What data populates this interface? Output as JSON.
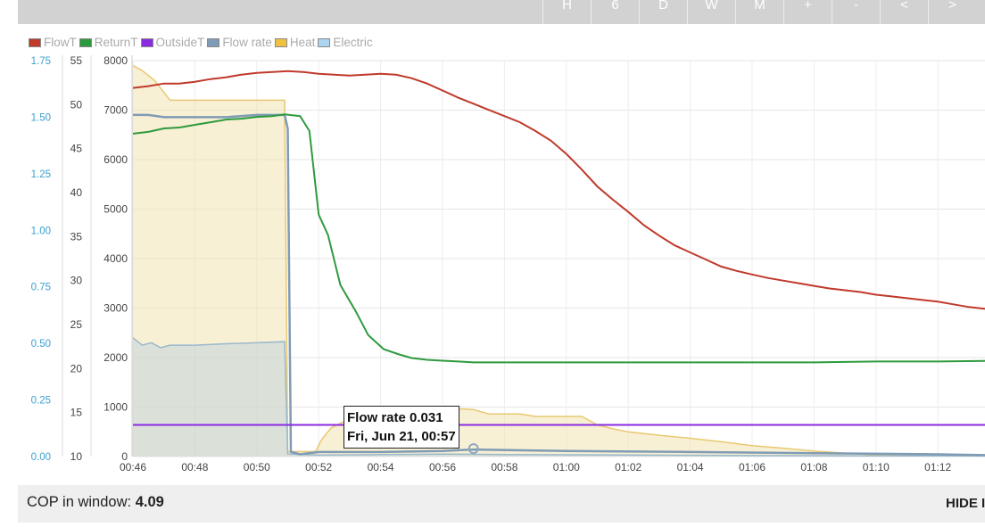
{
  "toolbar": {
    "buttons": [
      "H",
      "6",
      "D",
      "W",
      "M",
      "+",
      "-",
      "<",
      ">"
    ]
  },
  "colors": {
    "FlowT": "#c0392b",
    "ReturnT": "#2e9a3e",
    "OutsideT": "#8a2be2",
    "Flow rate": "#7f9bb5",
    "Heat": "#f0c040",
    "Electric": "#aad4f0"
  },
  "tooltip": {
    "line1": "Flow rate 0.031",
    "line2": "Fri, Jun 21, 00:57"
  },
  "cop": {
    "label": "COP in window:",
    "value": "4.09"
  },
  "hide_button": "HIDE I",
  "chart_data": {
    "type": "line",
    "legend": [
      "FlowT",
      "ReturnT",
      "OutsideT",
      "Flow rate",
      "Heat",
      "Electric"
    ],
    "legend_position": "top-left",
    "grid": true,
    "x_ticks": [
      "00:46",
      "00:48",
      "00:50",
      "00:52",
      "00:54",
      "00:56",
      "00:58",
      "01:00",
      "01:02",
      "01:04",
      "01:06",
      "01:08",
      "01:10",
      "01:12"
    ],
    "x_range": [
      "00:46",
      "01:14"
    ],
    "axes": {
      "flow_rate": {
        "range": [
          0,
          1.75
        ],
        "ticks": [
          "0.00",
          "0.25",
          "0.50",
          "0.75",
          "1.00",
          "1.25",
          "1.50",
          "1.75"
        ]
      },
      "temperature": {
        "range": [
          10,
          55
        ],
        "ticks": [
          "10",
          "15",
          "20",
          "25",
          "30",
          "35",
          "40",
          "45",
          "50",
          "55"
        ]
      },
      "power": {
        "range": [
          0,
          8000
        ],
        "ticks": [
          "0",
          "1000",
          "2000",
          "3000",
          "4000",
          "5000",
          "6000",
          "7000",
          "8000"
        ]
      }
    },
    "series": [
      {
        "name": "FlowT",
        "axis": "temperature",
        "points": [
          [
            0,
            51.9
          ],
          [
            0.5,
            52.1
          ],
          [
            1,
            52.4
          ],
          [
            1.5,
            52.4
          ],
          [
            2,
            52.6
          ],
          [
            2.5,
            52.9
          ],
          [
            3,
            53.1
          ],
          [
            3.5,
            53.4
          ],
          [
            4,
            53.6
          ],
          [
            4.5,
            53.7
          ],
          [
            5,
            53.8
          ],
          [
            5.5,
            53.7
          ],
          [
            6,
            53.5
          ],
          [
            6.5,
            53.4
          ],
          [
            7,
            53.3
          ],
          [
            7.5,
            53.4
          ],
          [
            8,
            53.5
          ],
          [
            8.5,
            53.4
          ],
          [
            9,
            53.0
          ],
          [
            9.5,
            52.4
          ],
          [
            10,
            51.6
          ],
          [
            10.5,
            50.8
          ],
          [
            11,
            50.1
          ],
          [
            11.5,
            49.4
          ],
          [
            12,
            48.7
          ],
          [
            12.5,
            48.0
          ],
          [
            13,
            47.0
          ],
          [
            13.5,
            45.9
          ],
          [
            14,
            44.4
          ],
          [
            14.5,
            42.6
          ],
          [
            15,
            40.7
          ],
          [
            15.5,
            39.2
          ],
          [
            16,
            37.8
          ],
          [
            16.5,
            36.3
          ],
          [
            17,
            35.1
          ],
          [
            17.5,
            34.0
          ],
          [
            18,
            33.2
          ],
          [
            18.5,
            32.4
          ],
          [
            19,
            31.6
          ],
          [
            19.5,
            31.1
          ],
          [
            20,
            30.7
          ],
          [
            20.5,
            30.3
          ],
          [
            21,
            30.0
          ],
          [
            21.5,
            29.7
          ],
          [
            22,
            29.4
          ],
          [
            22.5,
            29.1
          ],
          [
            23,
            28.9
          ],
          [
            23.5,
            28.7
          ],
          [
            24,
            28.4
          ],
          [
            24.5,
            28.2
          ],
          [
            25,
            28.0
          ],
          [
            25.5,
            27.8
          ],
          [
            26,
            27.6
          ],
          [
            26.5,
            27.3
          ],
          [
            27,
            27.0
          ],
          [
            27.5,
            26.8
          ],
          [
            28,
            26.6
          ]
        ]
      },
      {
        "name": "ReturnT",
        "axis": "temperature",
        "points": [
          [
            0,
            46.7
          ],
          [
            0.5,
            46.9
          ],
          [
            1,
            47.3
          ],
          [
            1.5,
            47.4
          ],
          [
            2,
            47.7
          ],
          [
            2.5,
            48.0
          ],
          [
            3,
            48.3
          ],
          [
            3.5,
            48.4
          ],
          [
            4,
            48.6
          ],
          [
            4.5,
            48.7
          ],
          [
            4.9,
            48.9
          ],
          [
            5.4,
            48.7
          ],
          [
            5.7,
            47.0
          ],
          [
            6.0,
            37.5
          ],
          [
            6.3,
            35.2
          ],
          [
            6.7,
            29.5
          ],
          [
            7.2,
            26.5
          ],
          [
            7.6,
            23.8
          ],
          [
            8.1,
            22.2
          ],
          [
            8.6,
            21.6
          ],
          [
            9.0,
            21.2
          ],
          [
            9.5,
            21.0
          ],
          [
            10,
            20.9
          ],
          [
            10.5,
            20.8
          ],
          [
            11,
            20.7
          ],
          [
            12,
            20.7
          ],
          [
            14,
            20.7
          ],
          [
            16,
            20.7
          ],
          [
            18,
            20.7
          ],
          [
            20,
            20.7
          ],
          [
            22,
            20.7
          ],
          [
            24,
            20.8
          ],
          [
            26,
            20.8
          ],
          [
            28,
            20.9
          ]
        ]
      },
      {
        "name": "OutsideT",
        "axis": "temperature",
        "points": [
          [
            0,
            13.6
          ],
          [
            28,
            13.6
          ]
        ]
      },
      {
        "name": "Flow rate",
        "axis": "flow_rate",
        "points": [
          [
            0,
            1.51
          ],
          [
            0.5,
            1.51
          ],
          [
            1,
            1.5
          ],
          [
            2,
            1.5
          ],
          [
            3,
            1.5
          ],
          [
            4,
            1.51
          ],
          [
            4.9,
            1.51
          ],
          [
            5.0,
            1.45
          ],
          [
            5.1,
            0.02
          ],
          [
            5.4,
            0.01
          ],
          [
            6,
            0.02
          ],
          [
            8,
            0.02
          ],
          [
            10,
            0.025
          ],
          [
            11,
            0.031
          ],
          [
            14,
            0.025
          ],
          [
            18,
            0.02
          ],
          [
            22,
            0.015
          ],
          [
            26,
            0.01
          ],
          [
            28,
            0.005
          ]
        ]
      },
      {
        "name": "Heat",
        "axis": "power",
        "filled": true,
        "points": [
          [
            0,
            7900
          ],
          [
            0.3,
            7800
          ],
          [
            0.7,
            7600
          ],
          [
            1.2,
            7200
          ],
          [
            2,
            7200
          ],
          [
            3,
            7200
          ],
          [
            4,
            7200
          ],
          [
            4.9,
            7200
          ],
          [
            5.0,
            100
          ],
          [
            5.5,
            100
          ],
          [
            5.9,
            100
          ],
          [
            6.1,
            350
          ],
          [
            6.4,
            580
          ],
          [
            6.8,
            700
          ],
          [
            7.1,
            800
          ],
          [
            7.5,
            900
          ],
          [
            8.2,
            950
          ],
          [
            9.0,
            1000
          ],
          [
            10,
            980
          ],
          [
            11,
            950
          ],
          [
            11.5,
            860
          ],
          [
            12.5,
            860
          ],
          [
            13,
            810
          ],
          [
            14.5,
            810
          ],
          [
            15,
            640
          ],
          [
            15.5,
            560
          ],
          [
            16,
            500
          ],
          [
            17,
            430
          ],
          [
            18,
            370
          ],
          [
            19,
            300
          ],
          [
            20,
            220
          ],
          [
            21,
            170
          ],
          [
            22,
            110
          ],
          [
            23,
            70
          ],
          [
            24,
            30
          ],
          [
            28,
            10
          ]
        ]
      },
      {
        "name": "Electric",
        "axis": "power",
        "filled": true,
        "points": [
          [
            0,
            2400
          ],
          [
            0.3,
            2250
          ],
          [
            0.6,
            2300
          ],
          [
            0.9,
            2200
          ],
          [
            1.2,
            2250
          ],
          [
            2,
            2250
          ],
          [
            3,
            2280
          ],
          [
            4,
            2300
          ],
          [
            4.9,
            2320
          ],
          [
            5.0,
            50
          ],
          [
            6,
            30
          ],
          [
            8,
            40
          ],
          [
            10,
            50
          ],
          [
            12,
            40
          ],
          [
            16,
            30
          ],
          [
            20,
            20
          ],
          [
            24,
            15
          ],
          [
            28,
            10
          ]
        ]
      }
    ]
  }
}
